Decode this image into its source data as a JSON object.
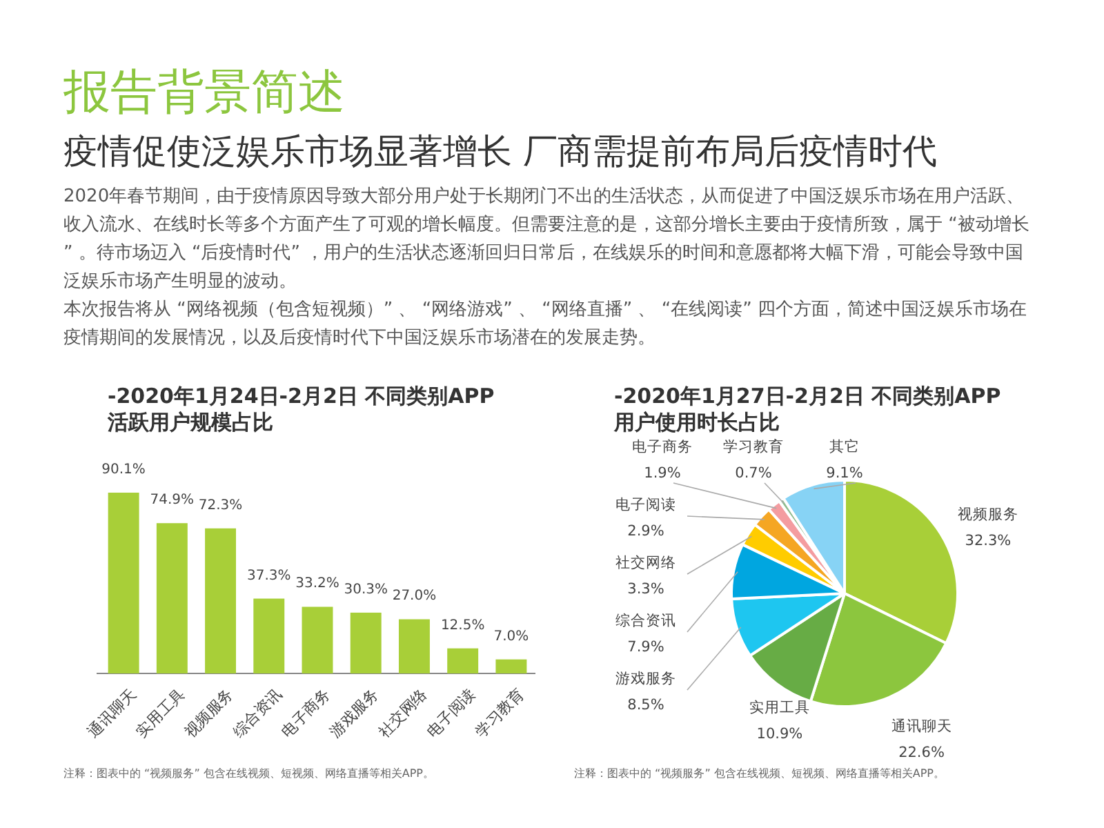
{
  "chart_data": [
    {
      "type": "bar",
      "title": "-2020年1月24日-2月2日 不同类别APP 活跃用户规模占比",
      "annotations": [
        "报告背景简述",
        "疫情促使泛娱乐市场显著增长 厂商需提前布局后疫情时代",
        "2020年春节期间，由于疫情原因导致大部分用户处于长期闭门不出的生活状态，从而促进了中国泛娱乐市场在用户活跃、收入流水、在线时长等多个方面产生了可观的增长幅度。但需要注意的是，这部分增长主要由于疫情所致，属于 “被动增长” 。待市场迈入 “后疫情时代” ，用户的生活状态逐渐回归日常后，在线娱乐的时间和意愿都将大幅下滑，可能会导致中国泛娱乐市场产生明显的波动。",
        "本次报告将从 “网络视频（包含短视频）” 、 “网络游戏” 、 “网络直播” 、 “在线阅读” 四个方面，简述中国泛娱乐市场在疫情期间的发展情况，以及后疫情时代下中国泛娱乐市场潜在的发展走势。",
        "注释：图表中的 “视频服务” 包含在线视频、短视频、网络直播等相关APP。"
      ],
      "categories": [
        "通讯聊天",
        "实用工具",
        "视频服务",
        "综合资讯",
        "电子商务",
        "游戏服务",
        "社交网络",
        "电子阅读",
        "学习教育"
      ],
      "values": [
        90.1,
        74.9,
        72.3,
        37.3,
        33.2,
        30.3,
        27.0,
        12.5,
        7.0
      ],
      "value_labels": [
        "90.1%",
        "74.9%",
        "72.3%",
        "37.3%",
        "33.2%",
        "30.3%",
        "27.0%",
        "12.5%",
        "7.0%"
      ],
      "color": "#a8cf38"
    },
    {
      "type": "pie",
      "title": "-2020年1月27日-2月2日 不同类别APP 用户使用时长占比",
      "annotations": [
        "注释：图表中的 “视频服务” 包含在线视频、短视频、网络直播等相关APP。"
      ],
      "categories": [
        "视频服务",
        "通讯聊天",
        "实用工具",
        "游戏服务",
        "综合资讯",
        "社交网络",
        "电子阅读",
        "电子商务",
        "学习教育",
        "其它"
      ],
      "values": [
        32.3,
        22.6,
        10.9,
        8.5,
        7.9,
        3.3,
        2.9,
        1.9,
        0.7,
        9.1
      ],
      "value_labels": [
        "32.3%",
        "22.6%",
        "10.9%",
        "8.5%",
        "7.9%",
        "3.3%",
        "2.9%",
        "1.9%",
        "0.7%",
        "9.1%"
      ],
      "colors": [
        "#a8cf38",
        "#8cc63e",
        "#67ac45",
        "#1ec6f0",
        "#00a6e0",
        "#ffcc00",
        "#f5a623",
        "#f49ca0",
        "#8fbc8f",
        "#87d3f5"
      ]
    }
  ]
}
